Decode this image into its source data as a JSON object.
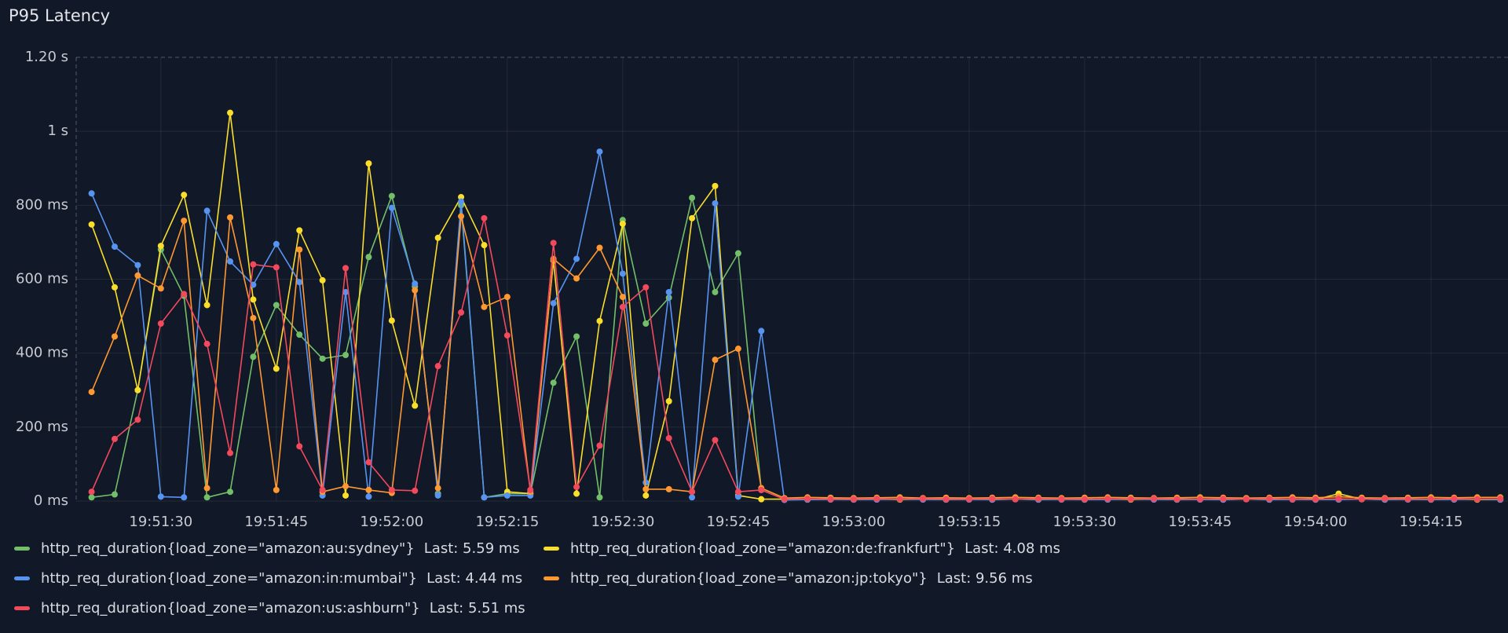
{
  "chart_data": {
    "type": "line",
    "title": "P95 Latency",
    "x": [
      "19:51:21",
      "19:51:24",
      "19:51:27",
      "19:51:30",
      "19:51:33",
      "19:51:36",
      "19:51:39",
      "19:51:42",
      "19:51:45",
      "19:51:48",
      "19:51:51",
      "19:51:54",
      "19:51:57",
      "19:52:00",
      "19:52:03",
      "19:52:06",
      "19:52:09",
      "19:52:12",
      "19:52:15",
      "19:52:18",
      "19:52:21",
      "19:52:24",
      "19:52:27",
      "19:52:30",
      "19:52:33",
      "19:52:36",
      "19:52:39",
      "19:52:42",
      "19:52:45",
      "19:52:48",
      "19:52:51",
      "19:52:54",
      "19:52:57",
      "19:53:00",
      "19:53:03",
      "19:53:06",
      "19:53:09",
      "19:53:12",
      "19:53:15",
      "19:53:18",
      "19:53:21",
      "19:53:24",
      "19:53:27",
      "19:53:30",
      "19:53:33",
      "19:53:36",
      "19:53:39",
      "19:53:42",
      "19:53:45",
      "19:53:48",
      "19:53:51",
      "19:53:54",
      "19:53:57",
      "19:54:00",
      "19:54:03",
      "19:54:06",
      "19:54:09",
      "19:54:12",
      "19:54:15",
      "19:54:18",
      "19:54:21",
      "19:54:24"
    ],
    "xlim": [
      "19:51:19",
      "19:54:25"
    ],
    "xticks": [
      "19:51:30",
      "19:51:45",
      "19:52:00",
      "19:52:15",
      "19:52:30",
      "19:52:45",
      "19:53:00",
      "19:53:15",
      "19:53:30",
      "19:53:45",
      "19:54:00",
      "19:54:15"
    ],
    "ylim": [
      0,
      1200
    ],
    "yticks": [
      {
        "value": 0,
        "label": "0 ms"
      },
      {
        "value": 200,
        "label": "200 ms"
      },
      {
        "value": 400,
        "label": "400 ms"
      },
      {
        "value": 600,
        "label": "600 ms"
      },
      {
        "value": 800,
        "label": "800 ms"
      },
      {
        "value": 1000,
        "label": "1 s"
      },
      {
        "value": 1200,
        "label": "1.20 s"
      }
    ],
    "grid": true,
    "series": [
      {
        "name": "http_req_duration{load_zone=\"amazon:au:sydney\"}",
        "last_label": "Last: 5.59 ms",
        "color": "#73bf69",
        "values": [
          10,
          18,
          300,
          680,
          555,
          10,
          25,
          390,
          530,
          450,
          385,
          395,
          660,
          825,
          580,
          20,
          800,
          10,
          20,
          20,
          320,
          445,
          10,
          760,
          480,
          550,
          820,
          565,
          670,
          30,
          5,
          5,
          6,
          5,
          5,
          6,
          5,
          5,
          6,
          5,
          5,
          6,
          5,
          5,
          6,
          5,
          5,
          6,
          5,
          5,
          6,
          5,
          5,
          6,
          5,
          5,
          6,
          5,
          5,
          6,
          5,
          6
        ]
      },
      {
        "name": "http_req_duration{load_zone=\"amazon:de:frankfurt\"}",
        "last_label": "Last: 4.08 ms",
        "color": "#fade2a",
        "values": [
          748,
          578,
          300,
          690,
          828,
          530,
          1050,
          545,
          358,
          732,
          597,
          15,
          913,
          488,
          258,
          712,
          822,
          692,
          25,
          20,
          650,
          20,
          487,
          750,
          15,
          270,
          765,
          852,
          15,
          5,
          5,
          4,
          5,
          4,
          5,
          4,
          5,
          4,
          5,
          4,
          5,
          4,
          5,
          4,
          5,
          4,
          5,
          4,
          5,
          4,
          5,
          4,
          5,
          4,
          20,
          5,
          4,
          5,
          4,
          5,
          4,
          4
        ]
      },
      {
        "name": "http_req_duration{load_zone=\"amazon:in:mumbai\"}",
        "last_label": "Last: 4.44 ms",
        "color": "#5794f2",
        "values": [
          832,
          688,
          638,
          12,
          10,
          785,
          648,
          585,
          695,
          592,
          15,
          565,
          12,
          793,
          588,
          15,
          810,
          10,
          15,
          15,
          535,
          655,
          945,
          615,
          50,
          565,
          10,
          805,
          12,
          460,
          3,
          4,
          4,
          4,
          4,
          5,
          4,
          4,
          4,
          4,
          5,
          4,
          4,
          4,
          4,
          5,
          4,
          4,
          4,
          4,
          5,
          4,
          4,
          4,
          4,
          5,
          4,
          4,
          4,
          4,
          5,
          4
        ]
      },
      {
        "name": "http_req_duration{load_zone=\"amazon:jp:tokyo\"}",
        "last_label": "Last: 9.56 ms",
        "color": "#ff9830",
        "values": [
          295,
          445,
          610,
          575,
          758,
          35,
          767,
          495,
          30,
          680,
          25,
          40,
          30,
          22,
          570,
          35,
          770,
          525,
          552,
          25,
          655,
          602,
          685,
          552,
          32,
          32,
          25,
          382,
          412,
          35,
          8,
          10,
          9,
          8,
          9,
          10,
          8,
          9,
          8,
          9,
          10,
          9,
          8,
          9,
          10,
          9,
          8,
          9,
          10,
          9,
          8,
          9,
          10,
          9,
          12,
          9,
          8,
          9,
          10,
          9,
          10,
          10
        ]
      },
      {
        "name": "http_req_duration{load_zone=\"amazon:us:ashburn\"}",
        "last_label": "Last: 5.51 ms",
        "color": "#f2495c",
        "values": [
          25,
          168,
          220,
          480,
          560,
          425,
          130,
          640,
          632,
          148,
          30,
          630,
          105,
          30,
          28,
          365,
          510,
          765,
          448,
          30,
          698,
          38,
          150,
          525,
          578,
          170,
          25,
          165,
          25,
          30,
          5,
          6,
          5,
          5,
          6,
          5,
          6,
          5,
          5,
          6,
          5,
          6,
          5,
          5,
          6,
          5,
          6,
          5,
          5,
          6,
          5,
          6,
          5,
          5,
          6,
          5,
          6,
          5,
          5,
          6,
          5,
          6
        ]
      }
    ]
  }
}
